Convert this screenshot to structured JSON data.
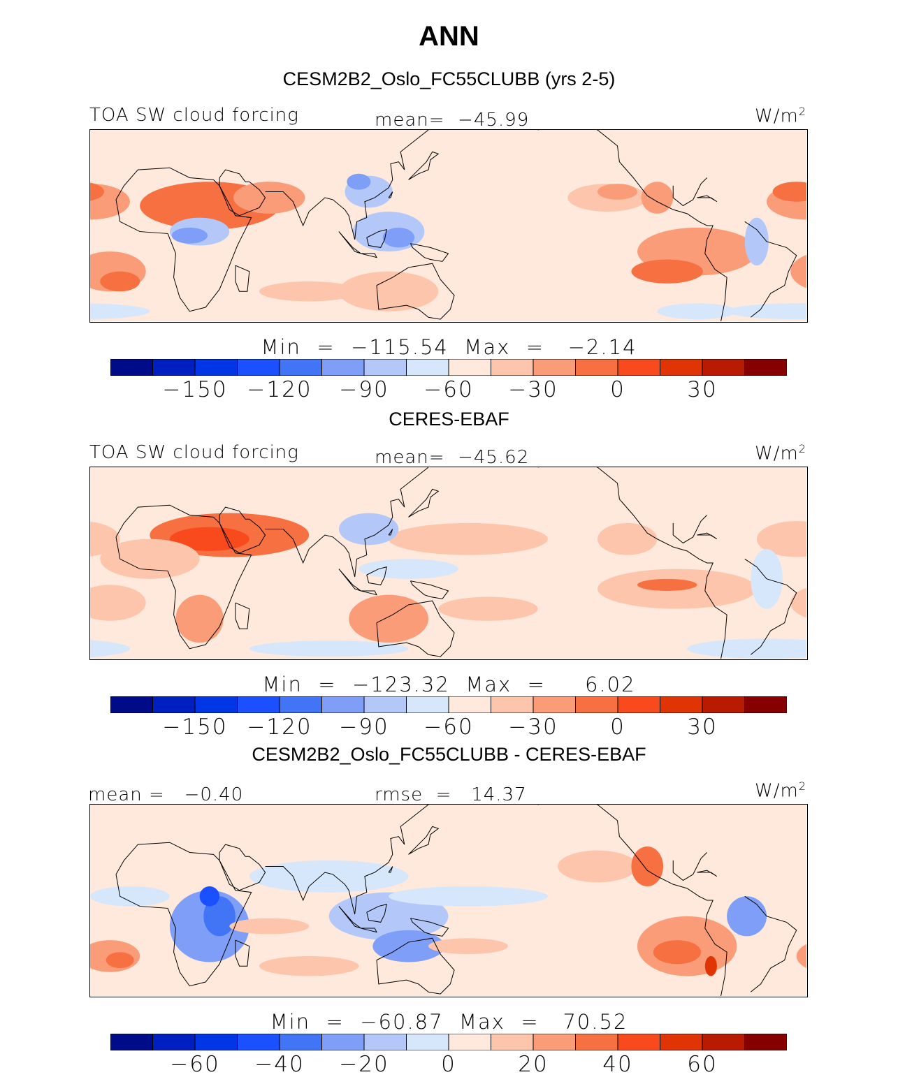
{
  "figure": {
    "title": "ANN",
    "units": "W/m",
    "units_exponent": "2"
  },
  "colors": [
    "#000b8a",
    "#001fc0",
    "#0036e6",
    "#1a50ff",
    "#4275f5",
    "#7e9ef7",
    "#b3c8f9",
    "#d6e6fb",
    "#ffe9dc",
    "#fdc5ab",
    "#fb9c78",
    "#f67042",
    "#f94a1d",
    "#e03405",
    "#b91a02",
    "#860000"
  ],
  "land_color": "#000000",
  "panels": [
    {
      "id": "model",
      "title": "CESM2B2_Oslo_FC55CLUBB (yrs 2-5)",
      "left_label": "TOA SW cloud forcing",
      "center_label": "mean=  −45.99",
      "stats": "Min  =  −115.54  Max  =   −2.14",
      "colorbar_ticks": [
        "−150",
        "−120",
        "−90",
        "−60",
        "−30",
        "0",
        "30"
      ],
      "background_level": 8,
      "regions": [
        {
          "lon": 30,
          "lat": 18,
          "rx": 35,
          "ry": 12,
          "level": 11
        },
        {
          "lon": 60,
          "lat": 22,
          "rx": 18,
          "ry": 8,
          "level": 10
        },
        {
          "lon": -30,
          "lat": 20,
          "rx": 20,
          "ry": 9,
          "level": 10
        },
        {
          "lon": -35,
          "lat": 25,
          "rx": 12,
          "ry": 5,
          "level": 11
        },
        {
          "lon": -20,
          "lat": -15,
          "rx": 18,
          "ry": 10,
          "level": 10
        },
        {
          "lon": -15,
          "lat": -20,
          "rx": 10,
          "ry": 5,
          "level": 11
        },
        {
          "lon": 25,
          "lat": 5,
          "rx": 15,
          "ry": 7,
          "level": 6
        },
        {
          "lon": 20,
          "lat": 3,
          "rx": 9,
          "ry": 4,
          "level": 5
        },
        {
          "lon": 120,
          "lat": 5,
          "rx": 18,
          "ry": 10,
          "level": 6
        },
        {
          "lon": 125,
          "lat": 2,
          "rx": 8,
          "ry": 5,
          "level": 5
        },
        {
          "lon": 110,
          "lat": 25,
          "rx": 12,
          "ry": 8,
          "level": 6
        },
        {
          "lon": 105,
          "lat": 30,
          "rx": 6,
          "ry": 4,
          "level": 5
        },
        {
          "lon": -85,
          "lat": -5,
          "rx": 30,
          "ry": 12,
          "level": 10
        },
        {
          "lon": -100,
          "lat": -15,
          "rx": 18,
          "ry": 6,
          "level": 11
        },
        {
          "lon": -130,
          "lat": 22,
          "rx": 20,
          "ry": 7,
          "level": 9
        },
        {
          "lon": -125,
          "lat": 25,
          "rx": 10,
          "ry": 4,
          "level": 10
        },
        {
          "lon": -105,
          "lat": 22,
          "rx": 8,
          "ry": 8,
          "level": 10
        },
        {
          "lon": 120,
          "lat": -25,
          "rx": 25,
          "ry": 10,
          "level": 9
        },
        {
          "lon": 80,
          "lat": -25,
          "rx": 25,
          "ry": 5,
          "level": 9
        },
        {
          "lon": -55,
          "lat": 0,
          "rx": 6,
          "ry": 12,
          "level": 6
        },
        {
          "lon": -35,
          "lat": -35,
          "rx": 35,
          "ry": 4,
          "level": 7
        },
        {
          "lon": -85,
          "lat": -35,
          "rx": 20,
          "ry": 4,
          "level": 7
        }
      ]
    },
    {
      "id": "obs",
      "title": "CERES-EBAF",
      "left_label": "TOA SW cloud forcing",
      "center_label": "mean=  −45.62",
      "stats": "Min  =  −123.32  Max  =     6.02",
      "colorbar_ticks": [
        "−150",
        "−120",
        "−90",
        "−60",
        "−30",
        "0",
        "30"
      ],
      "background_level": 8,
      "regions": [
        {
          "lon": 40,
          "lat": 22,
          "rx": 40,
          "ry": 11,
          "level": 11
        },
        {
          "lon": 30,
          "lat": 20,
          "rx": 20,
          "ry": 6,
          "level": 12
        },
        {
          "lon": 0,
          "lat": 10,
          "rx": 25,
          "ry": 10,
          "level": 9
        },
        {
          "lon": -35,
          "lat": 20,
          "rx": 20,
          "ry": 9,
          "level": 9
        },
        {
          "lon": -20,
          "lat": -12,
          "rx": 18,
          "ry": 9,
          "level": 9
        },
        {
          "lon": 25,
          "lat": -20,
          "rx": 12,
          "ry": 12,
          "level": 10
        },
        {
          "lon": 120,
          "lat": -20,
          "rx": 20,
          "ry": 12,
          "level": 10
        },
        {
          "lon": 160,
          "lat": 20,
          "rx": 40,
          "ry": 8,
          "level": 9
        },
        {
          "lon": -95,
          "lat": -5,
          "rx": 40,
          "ry": 10,
          "level": 9
        },
        {
          "lon": -100,
          "lat": -3,
          "rx": 15,
          "ry": 3,
          "level": 11
        },
        {
          "lon": 130,
          "lat": 5,
          "rx": 25,
          "ry": 5,
          "level": 7
        },
        {
          "lon": 110,
          "lat": 25,
          "rx": 15,
          "ry": 8,
          "level": 6
        },
        {
          "lon": -50,
          "lat": 0,
          "rx": 8,
          "ry": 15,
          "level": 7
        },
        {
          "lon": -120,
          "lat": 20,
          "rx": 15,
          "ry": 8,
          "level": 9
        },
        {
          "lon": 170,
          "lat": -15,
          "rx": 25,
          "ry": 6,
          "level": 9
        },
        {
          "lon": -50,
          "lat": -35,
          "rx": 40,
          "ry": 5,
          "level": 7
        },
        {
          "lon": 90,
          "lat": -35,
          "rx": 40,
          "ry": 4,
          "level": 7
        }
      ]
    },
    {
      "id": "diff",
      "title": "CESM2B2_Oslo_FC55CLUBB - CERES-EBAF",
      "left_label": "mean =   −0.40",
      "center_label": "rmse  =   14.37",
      "stats": "Min  =  −60.87  Max  =   70.52",
      "colorbar_ticks": [
        "−60",
        "−40",
        "−20",
        "0",
        "20",
        "40",
        "60"
      ],
      "background_level": 8,
      "regions": [
        {
          "lon": 30,
          "lat": -5,
          "rx": 20,
          "ry": 18,
          "level": 5
        },
        {
          "lon": 35,
          "lat": 0,
          "rx": 8,
          "ry": 10,
          "level": 4
        },
        {
          "lon": 30,
          "lat": 10,
          "rx": 5,
          "ry": 5,
          "level": 3
        },
        {
          "lon": 120,
          "lat": 0,
          "rx": 30,
          "ry": 12,
          "level": 6
        },
        {
          "lon": 130,
          "lat": -15,
          "rx": 18,
          "ry": 8,
          "level": 5
        },
        {
          "lon": 90,
          "lat": 20,
          "rx": 40,
          "ry": 8,
          "level": 7
        },
        {
          "lon": 160,
          "lat": 10,
          "rx": 40,
          "ry": 5,
          "level": 7
        },
        {
          "lon": -10,
          "lat": 10,
          "rx": 20,
          "ry": 5,
          "level": 7
        },
        {
          "lon": -90,
          "lat": -15,
          "rx": 25,
          "ry": 15,
          "level": 10
        },
        {
          "lon": -95,
          "lat": -18,
          "rx": 12,
          "ry": 6,
          "level": 11
        },
        {
          "lon": -20,
          "lat": -20,
          "rx": 15,
          "ry": 8,
          "level": 10
        },
        {
          "lon": -15,
          "lat": -22,
          "rx": 7,
          "ry": 4,
          "level": 11
        },
        {
          "lon": -135,
          "lat": 25,
          "rx": 20,
          "ry": 8,
          "level": 9
        },
        {
          "lon": -110,
          "lat": 25,
          "rx": 8,
          "ry": 10,
          "level": 11
        },
        {
          "lon": -60,
          "lat": 0,
          "rx": 10,
          "ry": 10,
          "level": 5
        },
        {
          "lon": -78,
          "lat": -25,
          "rx": 3,
          "ry": 5,
          "level": 13
        },
        {
          "lon": 60,
          "lat": -5,
          "rx": 20,
          "ry": 4,
          "level": 9
        },
        {
          "lon": 80,
          "lat": -25,
          "rx": 25,
          "ry": 5,
          "level": 9
        },
        {
          "lon": 160,
          "lat": -15,
          "rx": 20,
          "ry": 4,
          "level": 9
        }
      ]
    }
  ]
}
